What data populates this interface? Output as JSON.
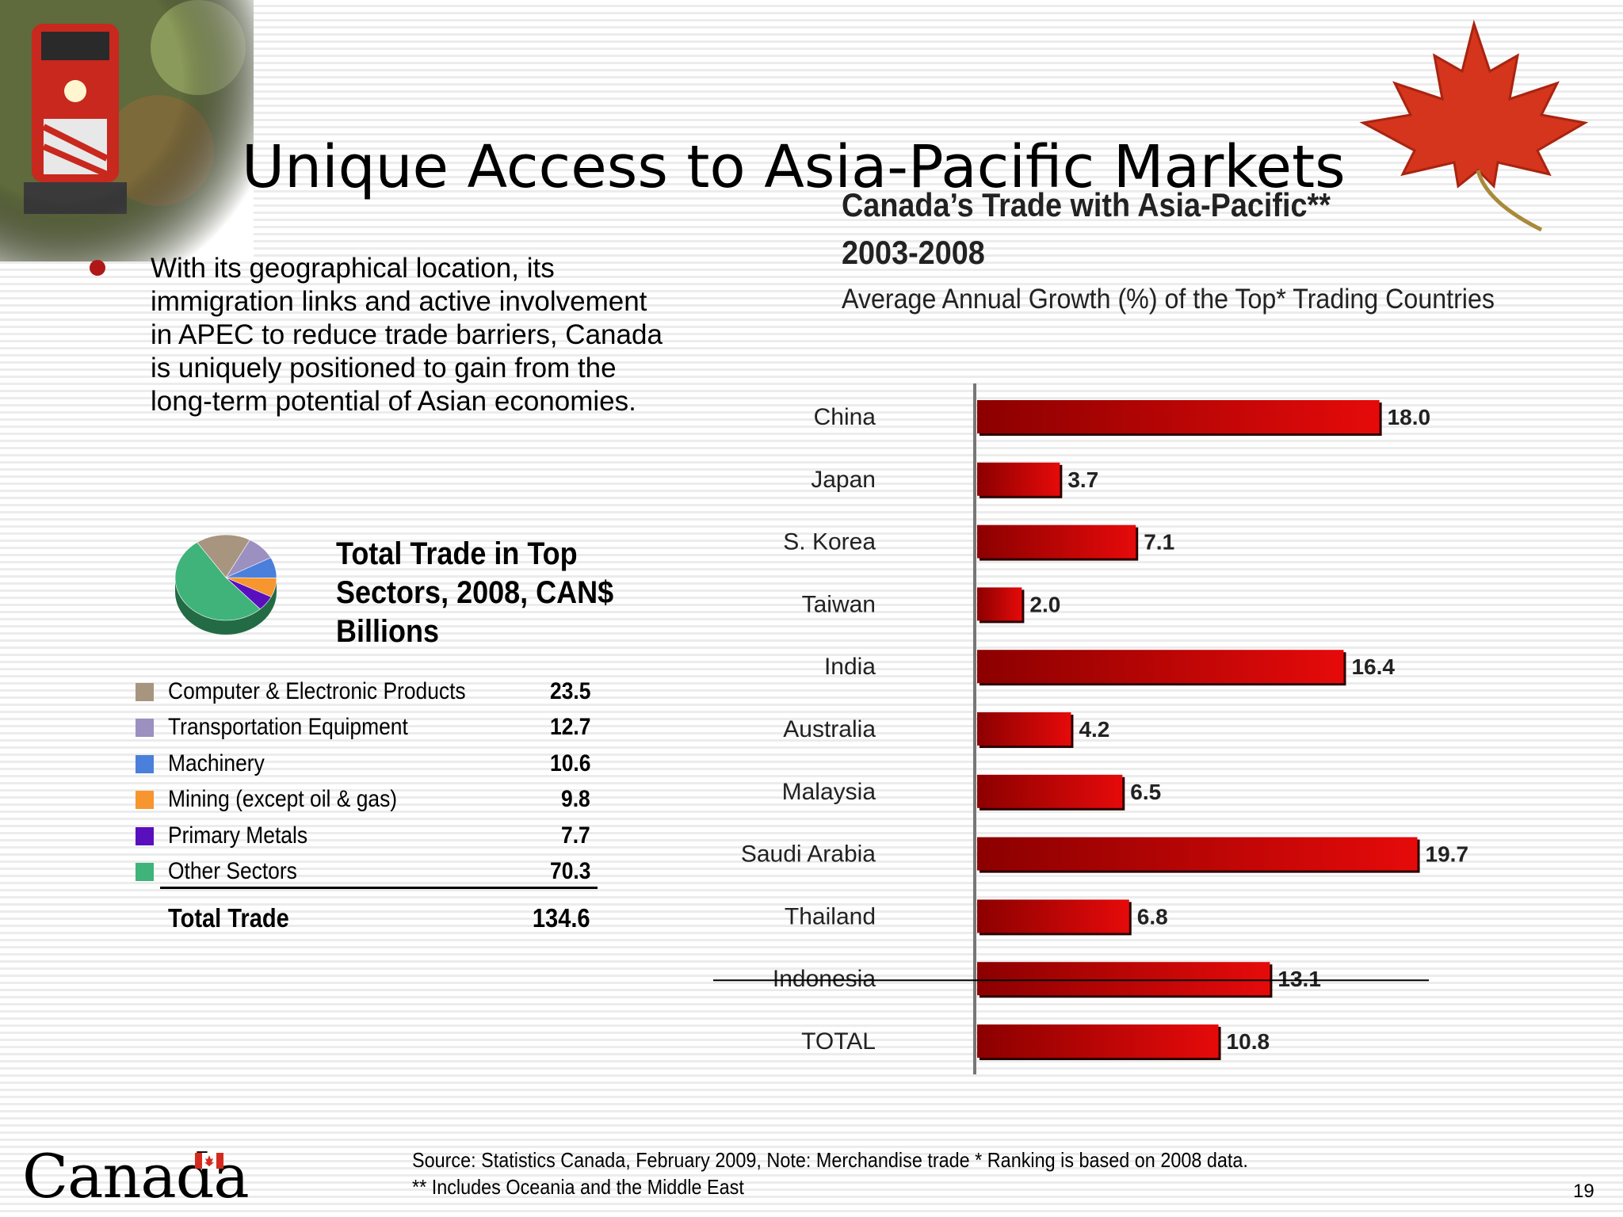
{
  "slide": {
    "title": "Unique Access to Asia-Pacific Markets",
    "page_number": "19",
    "bullet": "With its geographical location, its immigration links and active involvement in APEC to reduce trade barriers, Canada is uniquely positioned to gain from the long-term potential of Asian economies."
  },
  "sectors": {
    "title": "Total Trade in Top Sectors, 2008, CAN$ Billions",
    "items": [
      {
        "name": "Computer & Electronic Products",
        "value": "23.5",
        "color": "#a89580"
      },
      {
        "name": "Transportation Equipment",
        "value": "12.7",
        "color": "#9b90c0"
      },
      {
        "name": "Machinery",
        "value": "10.6",
        "color": "#4a7fdc"
      },
      {
        "name": "Mining (except oil & gas)",
        "value": "9.8",
        "color": "#f7952e"
      },
      {
        "name": "Primary Metals",
        "value": "7.7",
        "color": "#5a0fbf"
      },
      {
        "name": "Other Sectors",
        "value": "70.3",
        "color": "#3fb37a"
      }
    ],
    "total_label": "Total Trade",
    "total_value": "134.6"
  },
  "chart_data": {
    "type": "bar",
    "orientation": "horizontal",
    "title": "Canada’s Trade with Asia-Pacific**",
    "subtitle": "2003-2008",
    "caption": "Average Annual Growth (%) of the Top* Trading Countries",
    "categories": [
      "China",
      "Japan",
      "S. Korea",
      "Taiwan",
      "India",
      "Australia",
      "Malaysia",
      "Saudi Arabia",
      "Thailand",
      "Indonesia",
      "TOTAL"
    ],
    "values": [
      18.0,
      3.7,
      7.1,
      2.0,
      16.4,
      4.2,
      6.5,
      19.7,
      6.8,
      13.1,
      10.8
    ],
    "value_labels": [
      "18.0",
      "3.7",
      "7.1",
      "2.0",
      "16.4",
      "4.2",
      "6.5",
      "19.7",
      "6.8",
      "13.1",
      "10.8"
    ],
    "xlim": [
      0,
      20
    ],
    "bar_color": "#d80808"
  },
  "footer": {
    "source_line1": "Source: Statistics Canada, February 2009,  Note: Merchandise trade  * Ranking is based on 2008 data.",
    "source_line2": " ** Includes Oceania and the Middle East",
    "wordmark": "Canada"
  }
}
